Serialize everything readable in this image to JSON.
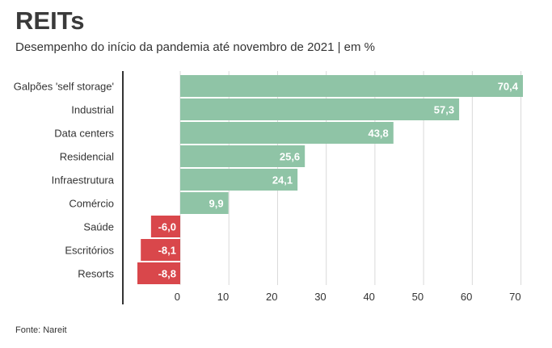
{
  "header": {
    "title": "REITs",
    "subtitle": "Desempenho do início da pandemia até novembro de 2021 | em %"
  },
  "footer": {
    "source": "Fonte: Nareit"
  },
  "colors": {
    "positive": "#8fc4a6",
    "negative": "#d9474b",
    "grid": "#d9d9d9",
    "axis": "#333333"
  },
  "chart_data": {
    "type": "bar",
    "orientation": "horizontal",
    "title": "REITs",
    "subtitle": "Desempenho do início da pandemia até novembro de 2021 | em %",
    "categories": [
      "Galpões 'self storage'",
      "Industrial",
      "Data centers",
      "Residencial",
      "Infraestrutura",
      "Comércio",
      "Saúde",
      "Escritórios",
      "Resorts"
    ],
    "values": [
      70.4,
      57.3,
      43.8,
      25.6,
      24.1,
      9.9,
      -6.0,
      -8.1,
      -8.8
    ],
    "value_labels": [
      "70,4",
      "57,3",
      "43,8",
      "25,6",
      "24,1",
      "9,9",
      "-6,0",
      "-8,1",
      "-8,8"
    ],
    "xticks": [
      0,
      10,
      20,
      30,
      40,
      50,
      60,
      70
    ],
    "xlim": [
      -10,
      70.4
    ],
    "grid": true
  }
}
